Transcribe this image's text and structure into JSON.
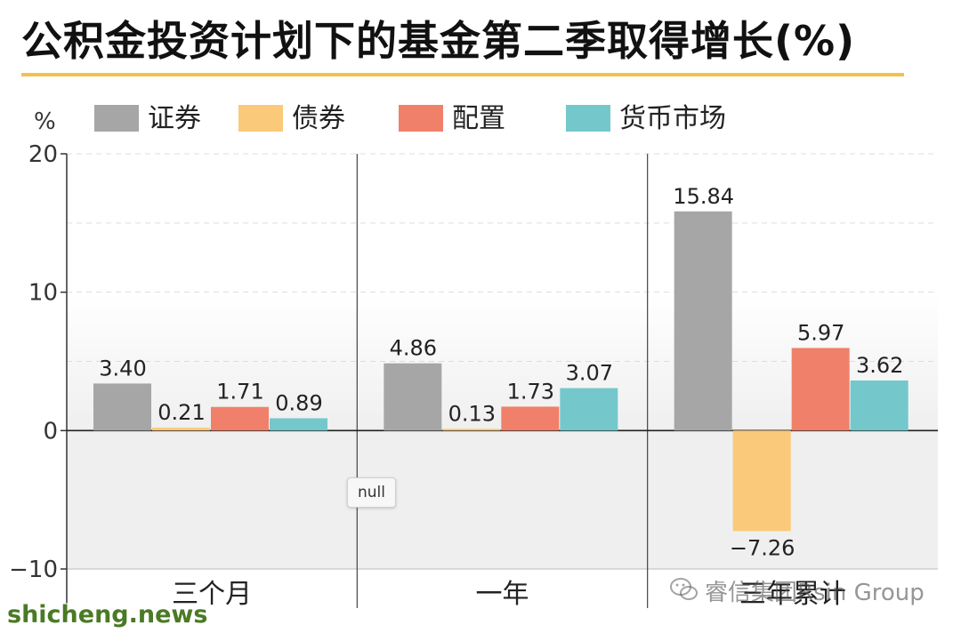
{
  "colors": {
    "securities": "#a7a6a6",
    "bonds": "#fbc97a",
    "allocation": "#f0806a",
    "money_market": "#74c8cc",
    "title_underline": "#f2c14e",
    "watermark_site": "#4a7a25"
  },
  "tooltip": "null",
  "watermarks": {
    "brand": "睿信集团Rsin Group",
    "site": "shicheng.news",
    "icon": "wechat-icon"
  },
  "chart_data": {
    "type": "bar",
    "title": "公积金投资计划下的基金第二季取得增长(%)",
    "ylabel": "%",
    "ylim": [
      -10,
      20
    ],
    "yticks": [
      "20",
      "10",
      "0",
      "−10"
    ],
    "ytick_values": [
      20,
      10,
      0,
      -10
    ],
    "grid": true,
    "legend_position": "top",
    "categories": [
      "三个月",
      "一年",
      "三年累计"
    ],
    "series": [
      {
        "name": "证券",
        "values": [
          3.4,
          4.86,
          15.84
        ],
        "labels": [
          "3.40",
          "4.86",
          "15.84"
        ]
      },
      {
        "name": "债券",
        "values": [
          0.21,
          0.13,
          -7.26
        ],
        "labels": [
          "0.21",
          "0.13",
          "−7.26"
        ]
      },
      {
        "name": "配置",
        "values": [
          1.71,
          1.73,
          5.97
        ],
        "labels": [
          "1.71",
          "1.73",
          "5.97"
        ]
      },
      {
        "name": "货币市场",
        "values": [
          0.89,
          3.07,
          3.62
        ],
        "labels": [
          "0.89",
          "3.07",
          "3.62"
        ]
      }
    ]
  }
}
